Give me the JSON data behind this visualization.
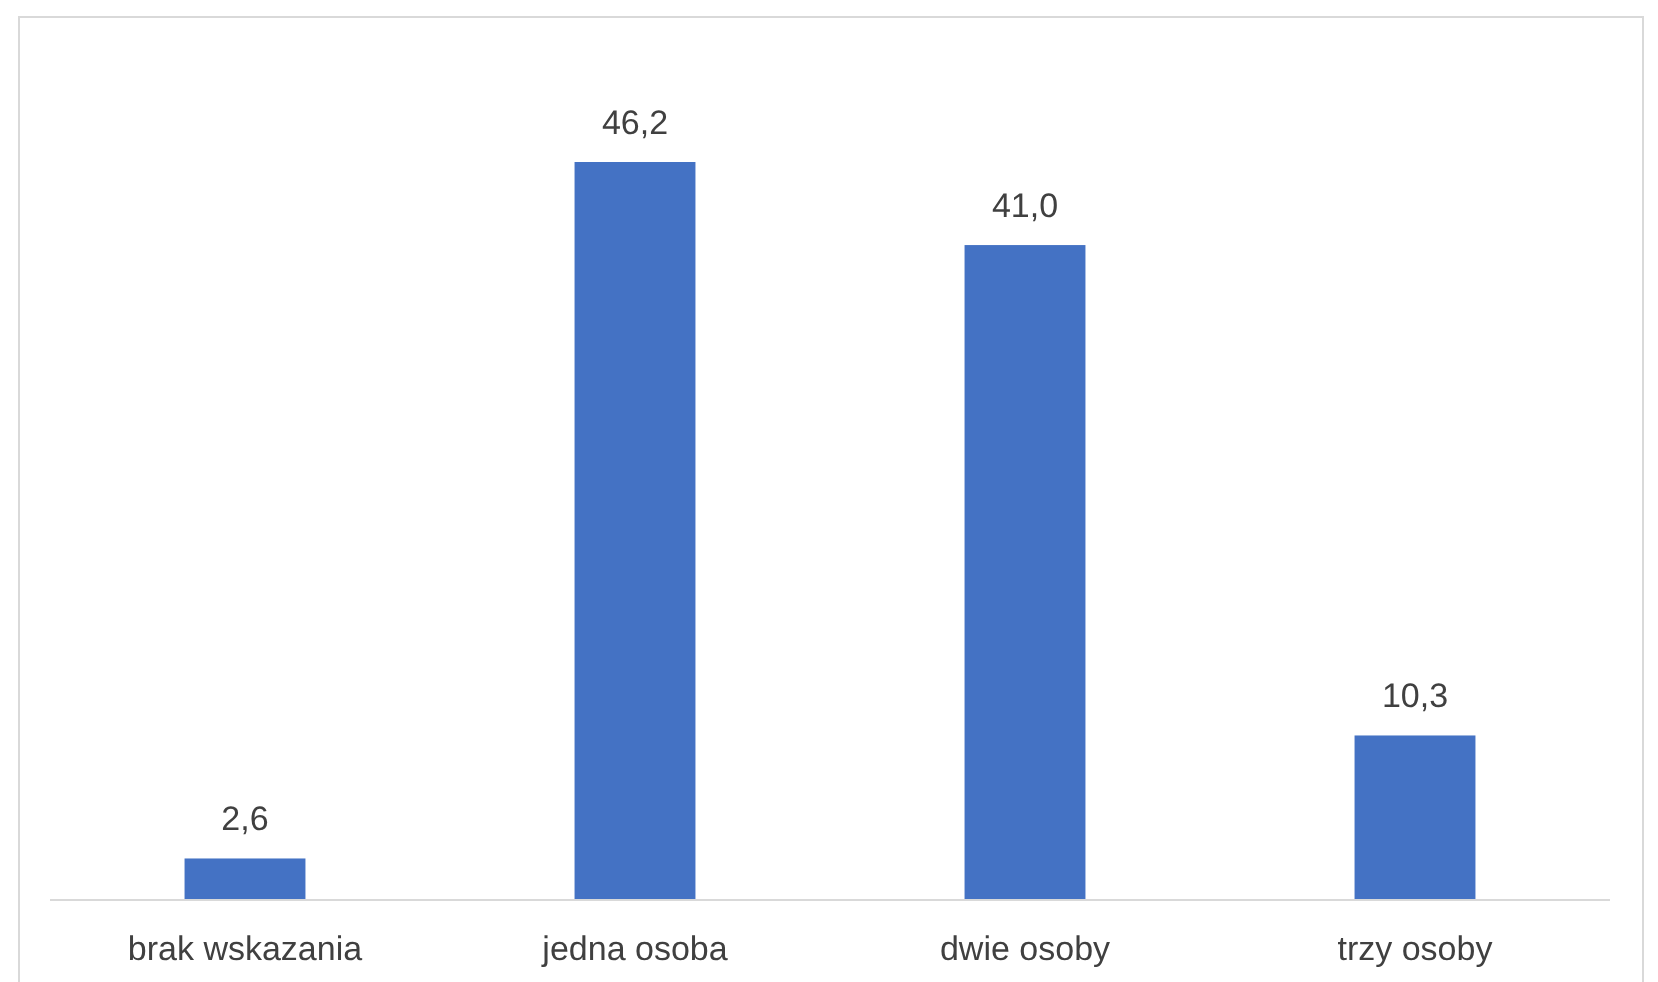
{
  "chart_data": {
    "type": "bar",
    "categories": [
      "brak wskazania",
      "jedna osoba",
      "dwie osoby",
      "trzy osoby"
    ],
    "values": [
      2.6,
      46.2,
      41.0,
      10.3
    ],
    "value_labels": [
      "2,6",
      "46,2",
      "41,0",
      "10,3"
    ],
    "color": "#4472c4"
  }
}
